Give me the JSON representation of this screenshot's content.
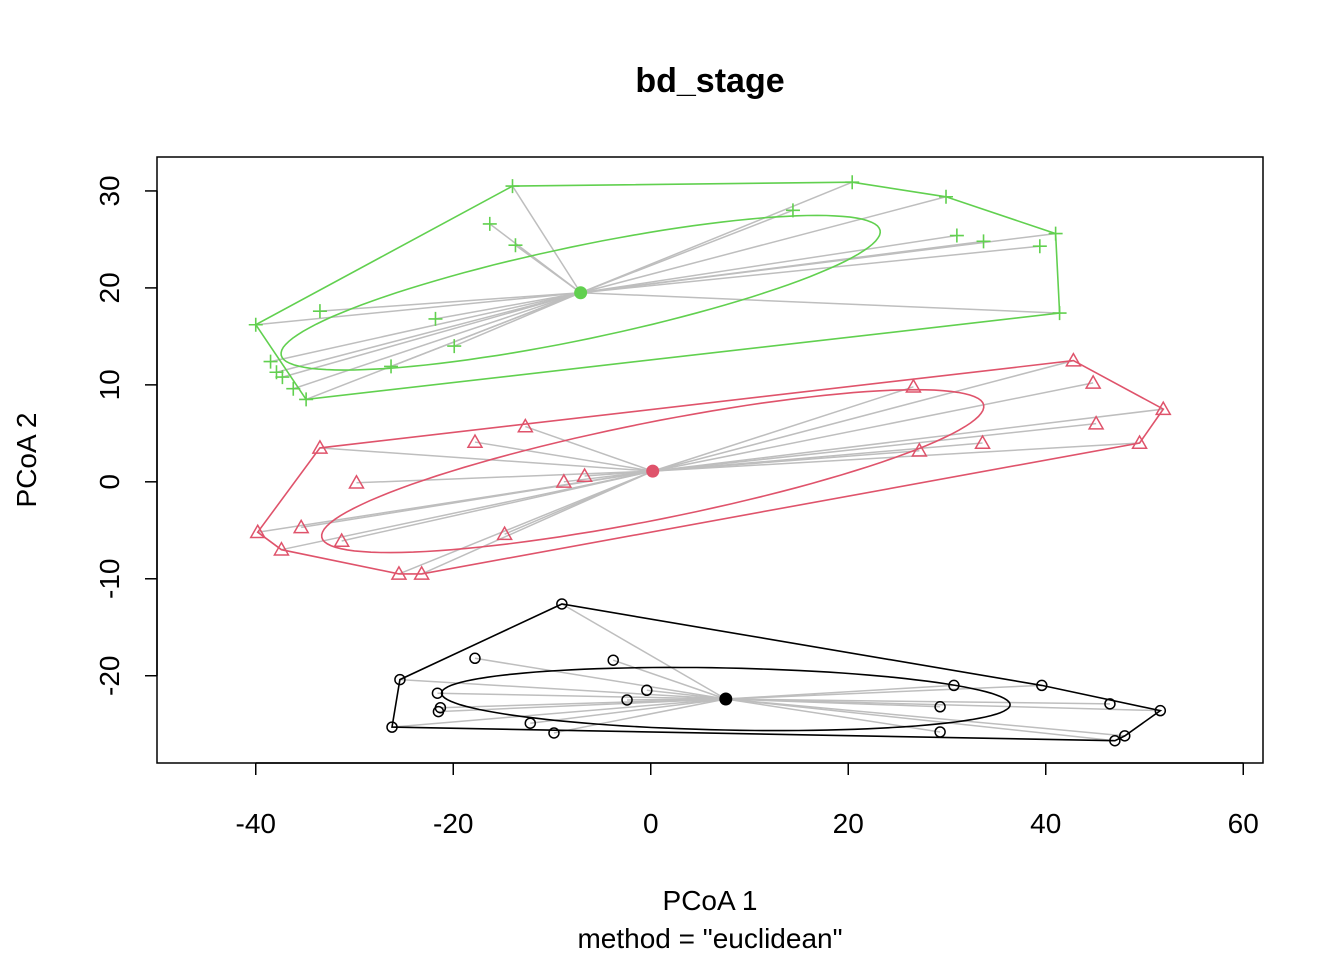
{
  "chart_data": {
    "type": "scatter",
    "title": "bd_stage",
    "xlabel": "PCoA 1",
    "sublabel": "method = \"euclidean\"",
    "ylabel": "PCoA 2",
    "xlim": [
      -50,
      62
    ],
    "ylim": [
      -29,
      33.5
    ],
    "xticks": [
      -40,
      -20,
      0,
      20,
      40,
      60
    ],
    "yticks": [
      -20,
      -10,
      0,
      10,
      20,
      30
    ],
    "grid": false,
    "legend": "none",
    "spider_color": "#BEBEBE",
    "groups": [
      {
        "color": "#000000",
        "marker": "circle",
        "centroid": [
          7.6,
          -22.4
        ],
        "ellipse": {
          "cx": 7.6,
          "cy": -22.4,
          "rx": 28.8,
          "ry": 3.2,
          "angle": -1.2
        },
        "hull": [
          [
            -26.2,
            -25.3
          ],
          [
            -25.4,
            -20.4
          ],
          [
            -9.0,
            -12.6
          ],
          [
            39.6,
            -21.0
          ],
          [
            51.6,
            -23.6
          ],
          [
            48.0,
            -26.2
          ],
          [
            47.0,
            -26.7
          ]
        ],
        "points": [
          [
            -26.2,
            -25.3
          ],
          [
            -25.4,
            -20.4
          ],
          [
            -21.6,
            -21.8
          ],
          [
            -21.3,
            -23.3
          ],
          [
            -21.5,
            -23.7
          ],
          [
            -17.8,
            -18.2
          ],
          [
            -12.2,
            -24.9
          ],
          [
            -9.8,
            -25.9
          ],
          [
            -9.0,
            -12.6
          ],
          [
            -3.8,
            -18.4
          ],
          [
            -2.4,
            -22.5
          ],
          [
            -0.4,
            -21.5
          ],
          [
            29.3,
            -23.2
          ],
          [
            30.7,
            -21.0
          ],
          [
            29.3,
            -25.8
          ],
          [
            39.6,
            -21.0
          ],
          [
            46.5,
            -22.9
          ],
          [
            48.0,
            -26.2
          ],
          [
            47.0,
            -26.7
          ],
          [
            51.6,
            -23.6
          ]
        ]
      },
      {
        "color": "#DF536B",
        "marker": "triangle",
        "centroid": [
          0.2,
          1.1
        ],
        "ellipse": {
          "cx": 0.2,
          "cy": 1.1,
          "rx": 34.2,
          "ry": 5.0,
          "angle": 11.5
        },
        "hull": [
          [
            -39.8,
            -5.2
          ],
          [
            -37.4,
            -7.0
          ],
          [
            -25.5,
            -9.5
          ],
          [
            -23.2,
            -9.5
          ],
          [
            49.5,
            4.0
          ],
          [
            51.9,
            7.5
          ],
          [
            42.8,
            12.5
          ],
          [
            -33.5,
            3.5
          ]
        ],
        "points": [
          [
            -39.8,
            -5.2
          ],
          [
            -37.4,
            -7.0
          ],
          [
            -35.4,
            -4.7
          ],
          [
            -33.5,
            3.5
          ],
          [
            -31.3,
            -6.1
          ],
          [
            -29.8,
            -0.1
          ],
          [
            -25.5,
            -9.5
          ],
          [
            -23.2,
            -9.5
          ],
          [
            -17.8,
            4.1
          ],
          [
            -14.8,
            -5.4
          ],
          [
            -12.7,
            5.7
          ],
          [
            -8.8,
            0.0
          ],
          [
            -6.7,
            0.6
          ],
          [
            26.6,
            9.8
          ],
          [
            27.2,
            3.2
          ],
          [
            33.6,
            4.0
          ],
          [
            42.8,
            12.5
          ],
          [
            44.8,
            10.2
          ],
          [
            45.1,
            6.0
          ],
          [
            49.5,
            4.0
          ],
          [
            51.9,
            7.5
          ]
        ]
      },
      {
        "color": "#61D04F",
        "marker": "plus",
        "centroid": [
          -7.1,
          19.5
        ],
        "ellipse": {
          "cx": -7.1,
          "cy": 19.5,
          "rx": 31.0,
          "ry": 4.8,
          "angle": 12.0
        },
        "hull": [
          [
            -40.0,
            16.2
          ],
          [
            -34.9,
            8.5
          ],
          [
            41.4,
            17.4
          ],
          [
            41.0,
            25.6
          ],
          [
            29.9,
            29.4
          ],
          [
            20.4,
            30.9
          ],
          [
            -14.0,
            30.5
          ]
        ],
        "points": [
          [
            -40.0,
            16.2
          ],
          [
            -38.5,
            12.4
          ],
          [
            -37.9,
            11.3
          ],
          [
            -37.3,
            10.8
          ],
          [
            -36.2,
            9.6
          ],
          [
            -34.9,
            8.5
          ],
          [
            -33.5,
            17.6
          ],
          [
            -26.3,
            11.9
          ],
          [
            -21.8,
            16.8
          ],
          [
            -19.9,
            14.0
          ],
          [
            -16.3,
            26.6
          ],
          [
            -13.7,
            24.4
          ],
          [
            -14.0,
            30.5
          ],
          [
            14.4,
            28.0
          ],
          [
            20.4,
            30.9
          ],
          [
            29.9,
            29.4
          ],
          [
            31.0,
            25.4
          ],
          [
            33.7,
            24.8
          ],
          [
            39.4,
            24.3
          ],
          [
            41.0,
            25.6
          ],
          [
            41.4,
            17.4
          ]
        ]
      }
    ]
  }
}
